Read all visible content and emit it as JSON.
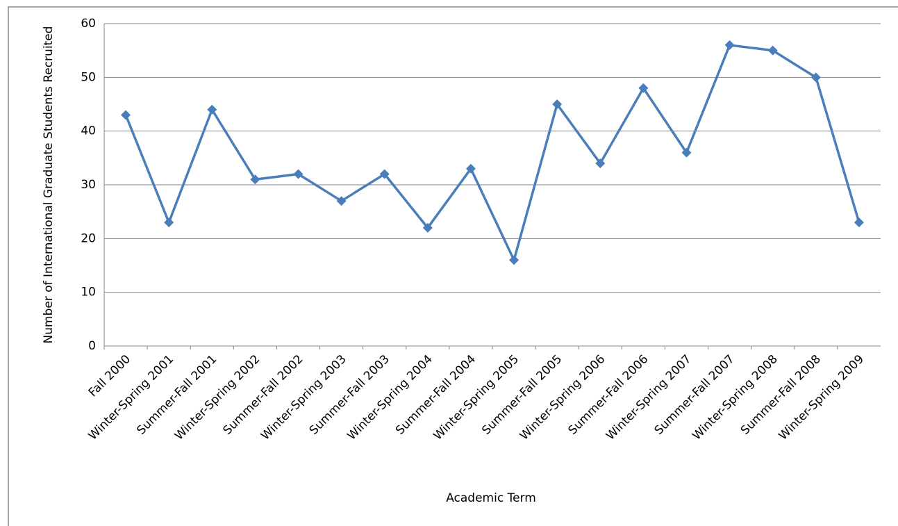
{
  "chart_data": {
    "type": "line",
    "y_label": "Number of International Graduate Students Recruited",
    "x_label": "Academic Term",
    "categories": [
      "Fall 2000",
      "Winter-Spring 2001",
      "Summer-Fall 2001",
      "Winter-Spring 2002",
      "Summer-Fall 2002",
      "Winter-Spring 2003",
      "Summer-Fall 2003",
      "Winter-Spring 2004",
      "Summer-Fall 2004",
      "Winter-Spring 2005",
      "Summer-Fall 2005",
      "Winter-Spring 2006",
      "Summer-Fall 2006",
      "Winter-Spring 2007",
      "Summer-Fall 2007",
      "Winter-Spring 2008",
      "Summer-Fall 2008",
      "Winter-Spring 2009"
    ],
    "values": [
      43,
      23,
      44,
      31,
      32,
      27,
      32,
      22,
      33,
      16,
      45,
      34,
      48,
      36,
      56,
      55,
      50,
      23
    ],
    "color": "#4a7ebb",
    "ylim": [
      0,
      60
    ],
    "yticks": [
      0,
      10,
      20,
      30,
      40,
      50,
      60
    ],
    "grid": true
  }
}
